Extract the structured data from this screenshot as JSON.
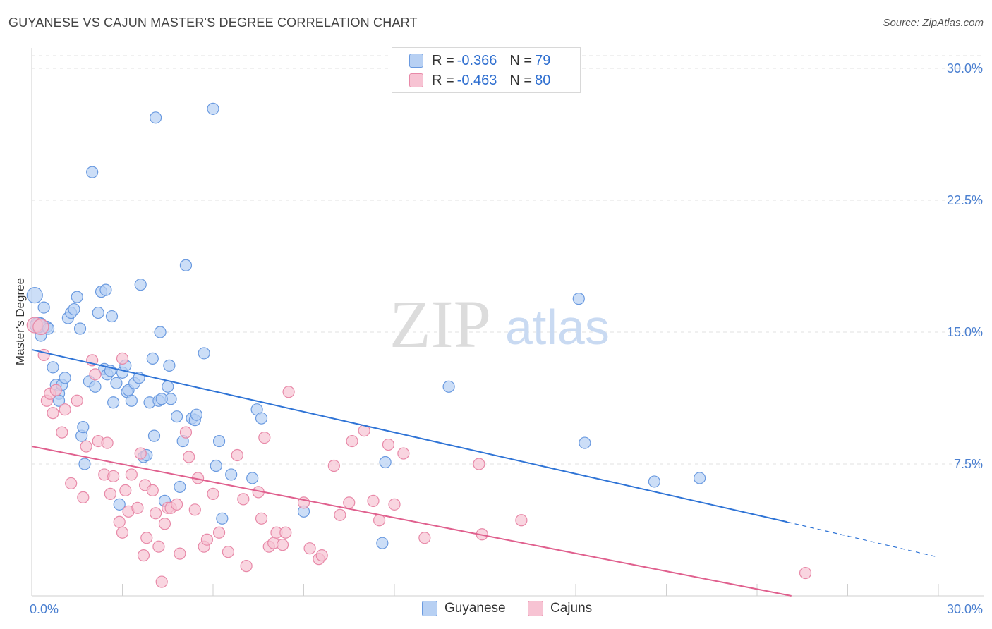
{
  "title": "GUYANESE VS CAJUN MASTER'S DEGREE CORRELATION CHART",
  "source": "Source: ZipAtlas.com",
  "watermark": {
    "zip": "ZIP",
    "atlas": "atlas"
  },
  "legend": {
    "rows": [
      {
        "r_label": "R = ",
        "r_value": "-0.366",
        "n_label": "N = ",
        "n_value": "79"
      },
      {
        "r_label": "R = ",
        "r_value": "-0.463",
        "n_label": "N = ",
        "n_value": "80"
      }
    ]
  },
  "bottom_legend": {
    "guyanese": "Guyanese",
    "cajuns": "Cajuns"
  },
  "colors": {
    "guyanese_fill": "#b7d0f3",
    "guyanese_stroke": "#6a9ae0",
    "guyanese_line": "#2f74d6",
    "cajuns_fill": "#f7c3d3",
    "cajuns_stroke": "#e889a8",
    "cajuns_line": "#e0608e",
    "tick_text": "#4a7fd0",
    "grid": "#e2e2e2"
  },
  "chart_data": {
    "type": "scatter",
    "title": "GUYANESE VS CAJUN MASTER'S DEGREE CORRELATION CHART",
    "xlabel": "",
    "ylabel": "Master's Degree",
    "xlim": [
      0,
      32.0
    ],
    "ylim": [
      0,
      30.8
    ],
    "x_tick_labels": [
      {
        "value": 0,
        "label": "0.0%"
      },
      {
        "value": 30,
        "label": "30.0%"
      }
    ],
    "y_ticks": [
      {
        "value": 7.5,
        "label": "7.5%"
      },
      {
        "value": 15.0,
        "label": "15.0%"
      },
      {
        "value": 22.5,
        "label": "22.5%"
      },
      {
        "value": 30.0,
        "label": "30.0%"
      }
    ],
    "series": [
      {
        "name": "Guyanese",
        "R": -0.366,
        "N": 79,
        "trend": {
          "x0": 0,
          "y0": 14.0,
          "x1": 25.0,
          "y1": 4.2,
          "dash_x1": 30.0,
          "dash_y1": 2.2
        },
        "points": [
          [
            0.1,
            17.1
          ],
          [
            0.25,
            15.4
          ],
          [
            0.3,
            14.8
          ],
          [
            0.4,
            16.4
          ],
          [
            0.5,
            15.3
          ],
          [
            0.7,
            13.0
          ],
          [
            0.8,
            12.0
          ],
          [
            0.9,
            11.5
          ],
          [
            0.9,
            11.1
          ],
          [
            1.0,
            12.0
          ],
          [
            1.1,
            12.4
          ],
          [
            1.2,
            15.8
          ],
          [
            1.3,
            16.1
          ],
          [
            1.4,
            16.3
          ],
          [
            1.5,
            17.0
          ],
          [
            1.6,
            15.2
          ],
          [
            1.65,
            9.1
          ],
          [
            1.7,
            9.6
          ],
          [
            1.75,
            7.5
          ],
          [
            1.9,
            12.2
          ],
          [
            2.0,
            24.1
          ],
          [
            2.1,
            11.9
          ],
          [
            2.2,
            16.1
          ],
          [
            2.3,
            17.3
          ],
          [
            2.4,
            12.9
          ],
          [
            2.45,
            17.4
          ],
          [
            2.5,
            12.6
          ],
          [
            2.6,
            12.8
          ],
          [
            2.65,
            15.9
          ],
          [
            2.7,
            11.0
          ],
          [
            2.8,
            12.1
          ],
          [
            2.9,
            5.2
          ],
          [
            3.0,
            12.7
          ],
          [
            3.1,
            13.1
          ],
          [
            3.15,
            11.6
          ],
          [
            3.2,
            11.7
          ],
          [
            3.3,
            11.1
          ],
          [
            3.4,
            12.1
          ],
          [
            3.55,
            12.4
          ],
          [
            3.6,
            17.7
          ],
          [
            3.7,
            7.9
          ],
          [
            3.8,
            8.0
          ],
          [
            3.9,
            11.0
          ],
          [
            4.0,
            13.5
          ],
          [
            4.05,
            9.1
          ],
          [
            4.1,
            27.2
          ],
          [
            4.2,
            11.1
          ],
          [
            4.25,
            15.0
          ],
          [
            4.4,
            5.4
          ],
          [
            4.5,
            11.9
          ],
          [
            4.55,
            13.1
          ],
          [
            4.6,
            11.2
          ],
          [
            4.8,
            10.2
          ],
          [
            4.9,
            6.2
          ],
          [
            5.0,
            8.8
          ],
          [
            5.1,
            18.8
          ],
          [
            5.3,
            10.1
          ],
          [
            5.4,
            10.0
          ],
          [
            5.45,
            10.3
          ],
          [
            5.7,
            13.8
          ],
          [
            6.0,
            27.7
          ],
          [
            6.1,
            7.4
          ],
          [
            6.2,
            8.8
          ],
          [
            6.3,
            4.4
          ],
          [
            6.6,
            6.9
          ],
          [
            7.3,
            6.7
          ],
          [
            7.45,
            10.6
          ],
          [
            7.6,
            10.1
          ],
          [
            9.0,
            4.8
          ],
          [
            11.6,
            3.0
          ],
          [
            11.7,
            7.6
          ],
          [
            13.8,
            11.9
          ],
          [
            18.1,
            16.9
          ],
          [
            18.3,
            8.7
          ],
          [
            20.6,
            6.5
          ],
          [
            22.1,
            6.7
          ],
          [
            0.2,
            15.4
          ],
          [
            0.55,
            15.2
          ],
          [
            4.3,
            11.2
          ]
        ]
      },
      {
        "name": "Cajuns",
        "R": -0.463,
        "N": 80,
        "trend": {
          "x0": 0,
          "y0": 8.5,
          "x1": 26.0,
          "y1": 0.0
        },
        "points": [
          [
            0.1,
            15.4
          ],
          [
            0.3,
            15.3
          ],
          [
            0.4,
            13.7
          ],
          [
            0.5,
            11.1
          ],
          [
            0.6,
            11.5
          ],
          [
            0.7,
            10.4
          ],
          [
            0.8,
            11.7
          ],
          [
            1.0,
            9.3
          ],
          [
            1.1,
            10.6
          ],
          [
            1.3,
            6.4
          ],
          [
            1.5,
            11.1
          ],
          [
            1.7,
            5.6
          ],
          [
            1.8,
            8.5
          ],
          [
            2.0,
            13.4
          ],
          [
            2.1,
            12.6
          ],
          [
            2.2,
            8.8
          ],
          [
            2.4,
            6.9
          ],
          [
            2.5,
            8.7
          ],
          [
            2.6,
            5.8
          ],
          [
            2.7,
            6.8
          ],
          [
            2.9,
            4.2
          ],
          [
            3.0,
            3.6
          ],
          [
            3.1,
            6.0
          ],
          [
            3.2,
            4.8
          ],
          [
            3.3,
            6.9
          ],
          [
            3.5,
            5.0
          ],
          [
            3.6,
            8.1
          ],
          [
            3.7,
            2.3
          ],
          [
            3.75,
            6.3
          ],
          [
            3.8,
            3.3
          ],
          [
            4.0,
            6.0
          ],
          [
            4.1,
            4.7
          ],
          [
            4.2,
            2.8
          ],
          [
            4.3,
            0.8
          ],
          [
            4.4,
            4.1
          ],
          [
            4.5,
            5.0
          ],
          [
            4.6,
            5.0
          ],
          [
            4.8,
            5.2
          ],
          [
            4.9,
            2.4
          ],
          [
            5.1,
            9.3
          ],
          [
            5.2,
            7.9
          ],
          [
            5.4,
            4.9
          ],
          [
            5.5,
            6.7
          ],
          [
            5.7,
            2.8
          ],
          [
            5.8,
            3.2
          ],
          [
            6.0,
            5.8
          ],
          [
            6.2,
            3.6
          ],
          [
            6.5,
            2.5
          ],
          [
            6.8,
            8.0
          ],
          [
            7.0,
            5.5
          ],
          [
            7.1,
            1.7
          ],
          [
            7.5,
            5.9
          ],
          [
            7.6,
            4.4
          ],
          [
            7.7,
            9.0
          ],
          [
            7.85,
            2.8
          ],
          [
            8.0,
            3.0
          ],
          [
            8.1,
            3.6
          ],
          [
            8.3,
            2.9
          ],
          [
            8.4,
            3.6
          ],
          [
            8.5,
            11.6
          ],
          [
            9.0,
            5.3
          ],
          [
            9.2,
            2.7
          ],
          [
            9.5,
            2.1
          ],
          [
            9.6,
            2.3
          ],
          [
            10.0,
            7.4
          ],
          [
            10.2,
            4.6
          ],
          [
            10.5,
            5.3
          ],
          [
            10.6,
            8.8
          ],
          [
            11.0,
            9.4
          ],
          [
            11.3,
            5.4
          ],
          [
            11.5,
            4.3
          ],
          [
            11.8,
            8.6
          ],
          [
            12.0,
            5.2
          ],
          [
            12.3,
            8.1
          ],
          [
            13.0,
            3.3
          ],
          [
            14.8,
            7.5
          ],
          [
            14.9,
            3.5
          ],
          [
            16.2,
            4.3
          ],
          [
            25.6,
            1.3
          ],
          [
            3.0,
            13.5
          ]
        ]
      }
    ]
  }
}
